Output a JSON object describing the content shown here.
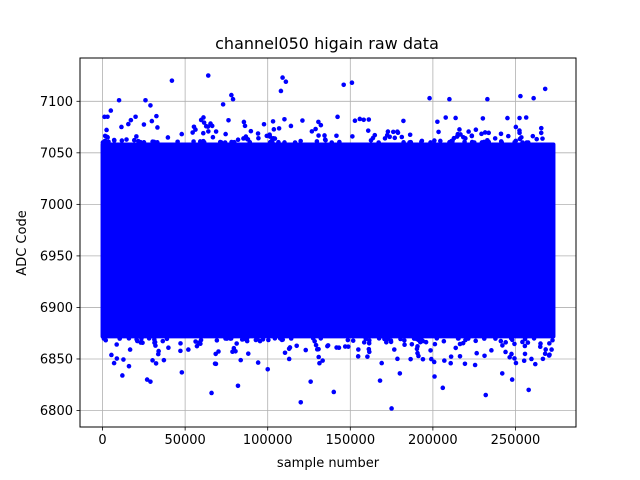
{
  "chart_data": {
    "type": "scatter",
    "title": "channel050 higain raw data",
    "xlabel": "sample number",
    "ylabel": "ADC Code",
    "xlim": [
      -13650,
      286650
    ],
    "ylim": [
      6784,
      7142
    ],
    "xticks": [
      0,
      50000,
      100000,
      150000,
      200000,
      250000
    ],
    "xtick_labels": [
      "0",
      "50000",
      "100000",
      "150000",
      "200000",
      "250000"
    ],
    "yticks": [
      6800,
      6850,
      6900,
      6950,
      7000,
      7050,
      7100
    ],
    "ytick_labels": [
      "6800",
      "6850",
      "6900",
      "6950",
      "7000",
      "7050",
      "7100"
    ],
    "grid": true,
    "marker_color": "#0000ff",
    "series": [
      {
        "x_range": [
          0,
          273000
        ],
        "dense_band": [
          6870,
          7060
        ],
        "outliers": [
          [
            3000,
            7085
          ],
          [
            5000,
            7091
          ],
          [
            10000,
            7101
          ],
          [
            20000,
            7085
          ],
          [
            26000,
            7101
          ],
          [
            29000,
            7096
          ],
          [
            42000,
            7120
          ],
          [
            64000,
            7125
          ],
          [
            73000,
            7097
          ],
          [
            78000,
            7106
          ],
          [
            79000,
            7102
          ],
          [
            108000,
            7110
          ],
          [
            109000,
            7123
          ],
          [
            111000,
            7119
          ],
          [
            146000,
            7116
          ],
          [
            151000,
            7118
          ],
          [
            198000,
            7103
          ],
          [
            210000,
            7102
          ],
          [
            233000,
            7102
          ],
          [
            253000,
            7105
          ],
          [
            261000,
            7103
          ],
          [
            268000,
            7112
          ],
          [
            7000,
            6846
          ],
          [
            12000,
            6834
          ],
          [
            16000,
            6843
          ],
          [
            27000,
            6830
          ],
          [
            29000,
            6828
          ],
          [
            48000,
            6837
          ],
          [
            66000,
            6817
          ],
          [
            82000,
            6824
          ],
          [
            100000,
            6840
          ],
          [
            113000,
            6850
          ],
          [
            120000,
            6808
          ],
          [
            126000,
            6828
          ],
          [
            140000,
            6818
          ],
          [
            168000,
            6829
          ],
          [
            175000,
            6802
          ],
          [
            180000,
            6836
          ],
          [
            201000,
            6833
          ],
          [
            206000,
            6822
          ],
          [
            232000,
            6815
          ],
          [
            242000,
            6836
          ],
          [
            248000,
            6830
          ],
          [
            258000,
            6820
          ],
          [
            262000,
            6845
          ]
        ]
      }
    ]
  }
}
